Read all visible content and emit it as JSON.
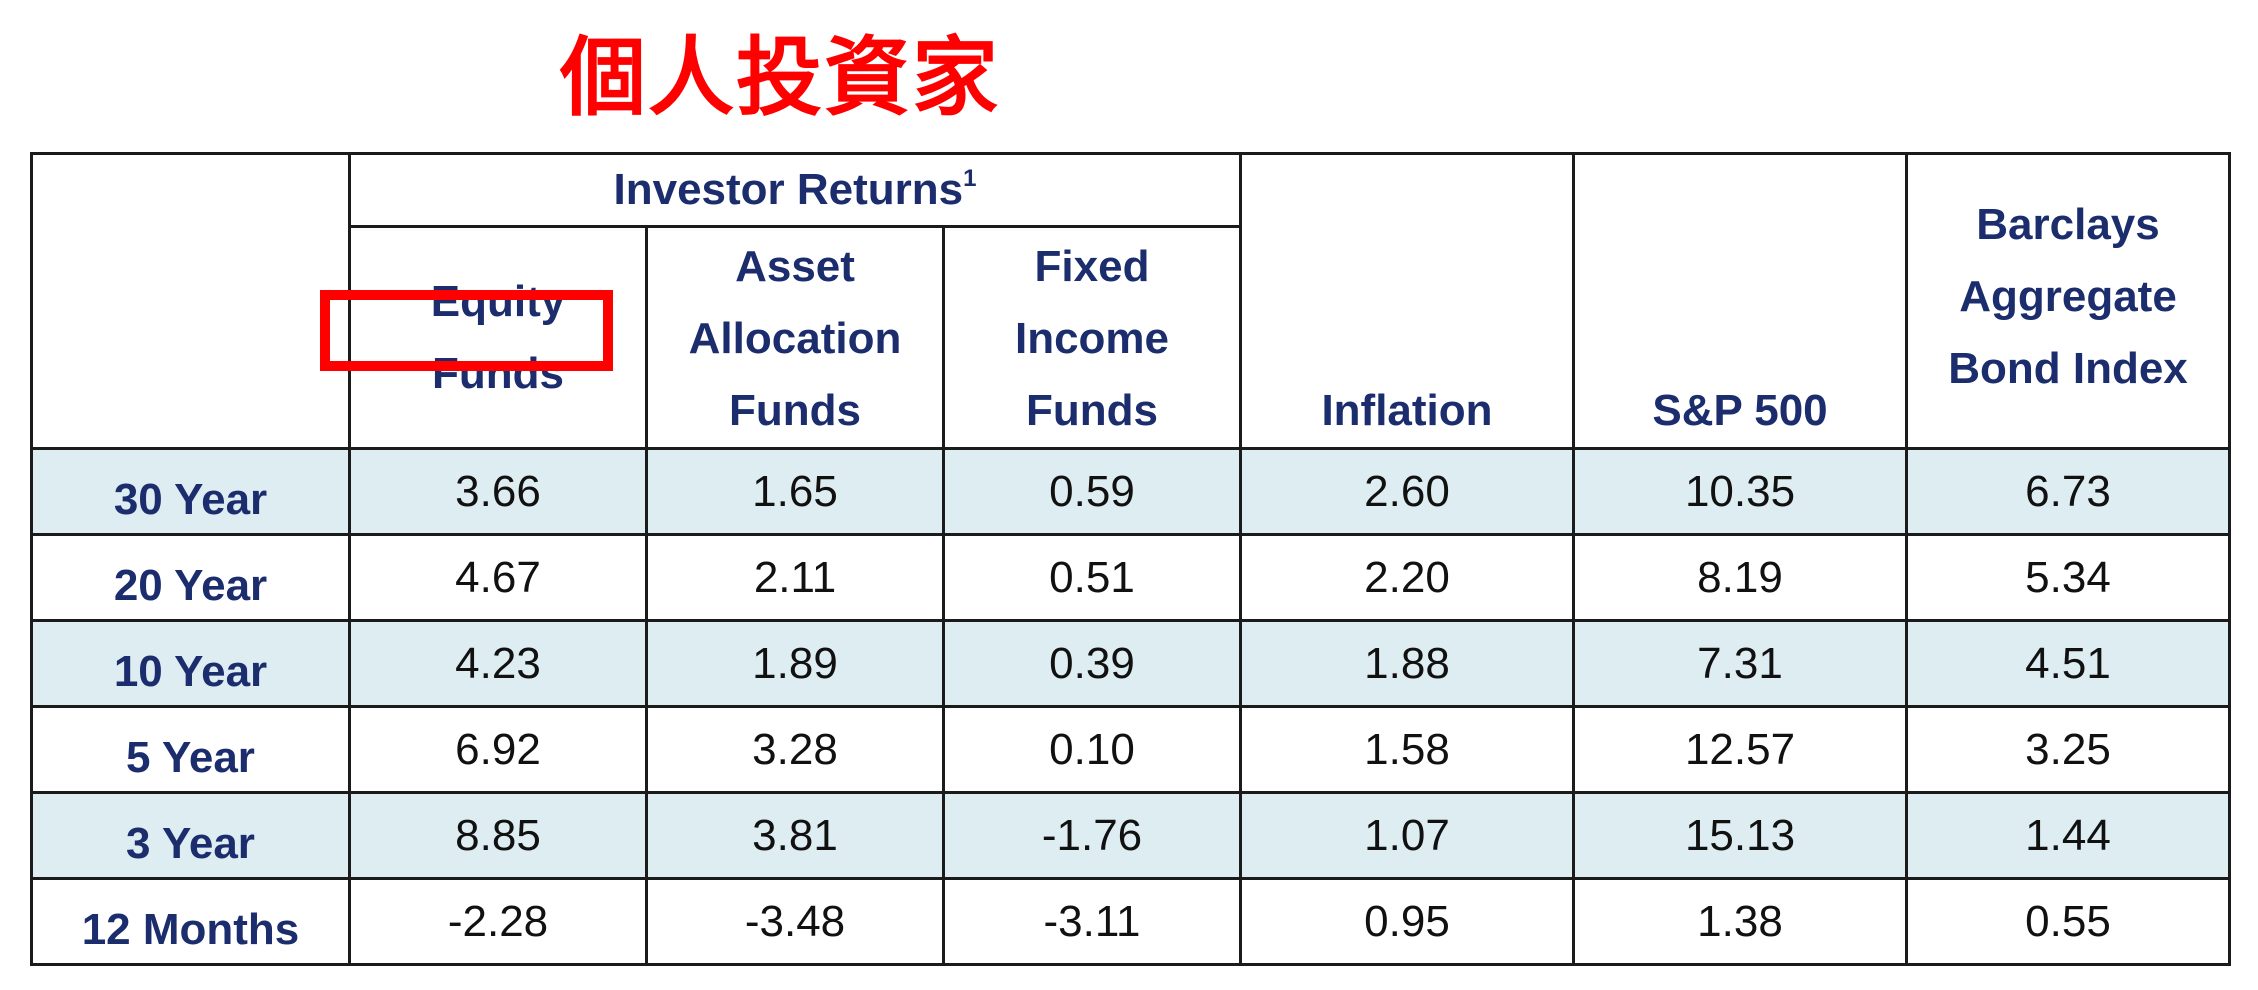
{
  "title": "個人投資家",
  "table": {
    "group_header": "Investor Returns",
    "group_header_sup": "1",
    "columns": {
      "equity": "Equity Funds",
      "asset": "Asset Allocation Funds",
      "fixed": "Fixed Income Funds",
      "inflation": "Inflation",
      "sp500": "S&P 500",
      "barclays": "Barclays Aggregate Bond Index"
    },
    "rows": [
      {
        "label": "30 Year",
        "equity": "3.66",
        "asset": "1.65",
        "fixed": "0.59",
        "inflation": "2.60",
        "sp500": "10.35",
        "barclays": "6.73"
      },
      {
        "label": "20 Year",
        "equity": "4.67",
        "asset": "2.11",
        "fixed": "0.51",
        "inflation": "2.20",
        "sp500": "8.19",
        "barclays": "5.34"
      },
      {
        "label": "10 Year",
        "equity": "4.23",
        "asset": "1.89",
        "fixed": "0.39",
        "inflation": "1.88",
        "sp500": "7.31",
        "barclays": "4.51"
      },
      {
        "label": "5 Year",
        "equity": "6.92",
        "asset": "3.28",
        "fixed": "0.10",
        "inflation": "1.58",
        "sp500": "12.57",
        "barclays": "3.25"
      },
      {
        "label": "3 Year",
        "equity": "8.85",
        "asset": "3.81",
        "fixed": "-1.76",
        "inflation": "1.07",
        "sp500": "15.13",
        "barclays": "1.44"
      },
      {
        "label": "12 Months",
        "equity": "-2.28",
        "asset": "-3.48",
        "fixed": "-3.11",
        "inflation": "0.95",
        "sp500": "1.38",
        "barclays": "0.55"
      }
    ]
  },
  "colors": {
    "header_text": "#1c2d6e",
    "row_shade": "#deedf2",
    "highlight": "#ff0000",
    "title": "#ff0000"
  }
}
